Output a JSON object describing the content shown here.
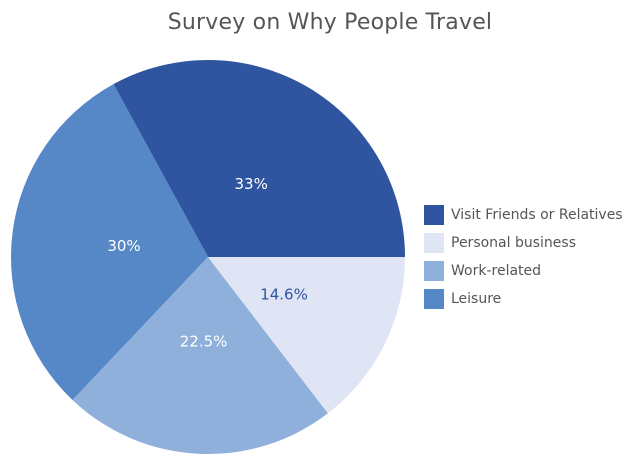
{
  "chart_data": {
    "type": "pie",
    "title": "Survey on Why People Travel",
    "slices": [
      {
        "label": "Visit Friends or Relatives",
        "value": 33,
        "display": "33%",
        "color": "#2f54a0",
        "text_color": "#ffffff"
      },
      {
        "label": "Leisure",
        "value": 30,
        "display": "30%",
        "color": "#5687c7",
        "text_color": "#ffffff"
      },
      {
        "label": "Work-related",
        "value": 22.5,
        "display": "22.5%",
        "color": "#8fb0db",
        "text_color": "#ffffff"
      },
      {
        "label": "Personal business",
        "value": 14.6,
        "display": "14.6%",
        "color": "#dfe5f5",
        "text_color": "#2f54a0"
      }
    ],
    "legend": {
      "position": "right",
      "order": [
        "Visit Friends or Relatives",
        "Personal business",
        "Work-related",
        "Leisure"
      ]
    }
  }
}
